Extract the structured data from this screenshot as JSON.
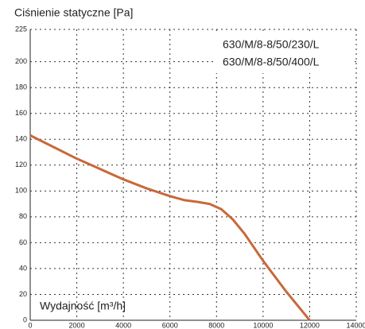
{
  "chart_data": {
    "type": "line",
    "title": "Ciśnienie statyczne [Pa]",
    "x_label": "Wydajność [m³/h]",
    "legend_labels": [
      "630/M/8-8/50/230/L",
      "630/M/8-8/50/400/L"
    ],
    "x": [
      0,
      1000,
      2000,
      3000,
      4000,
      5000,
      6000,
      6600,
      7200,
      7700,
      8200,
      8700,
      9200,
      10000,
      11000,
      12000
    ],
    "series": [
      {
        "color": "#c8693a",
        "values": [
          143,
          134,
          125,
          117,
          109,
          102,
          96,
          93,
          91.5,
          90,
          86,
          78,
          67,
          46,
          22,
          0
        ]
      }
    ],
    "xlim": [
      0,
      14000
    ],
    "xticks": [
      0,
      2000,
      4000,
      6000,
      8000,
      10000,
      12000,
      14000
    ],
    "ylim": [
      0,
      225
    ],
    "yticks": [
      0,
      20,
      40,
      60,
      80,
      100,
      120,
      140,
      160,
      180,
      200,
      225
    ],
    "grid": true
  }
}
